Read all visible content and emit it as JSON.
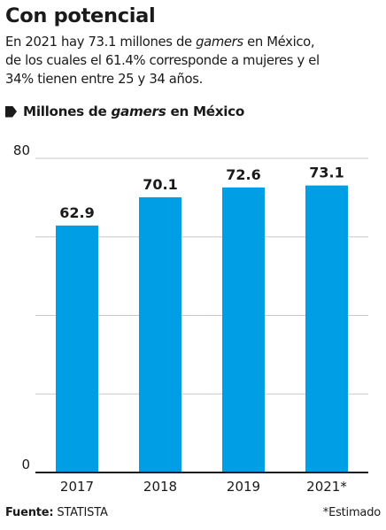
{
  "header": {
    "title": "Con potencial",
    "subtitle": {
      "line1_a": "En 2021 hay 73.1 millones de ",
      "line1_b": "gamers",
      "line1_c": " en México,",
      "line2": "de los cuales el 61.4% corresponde a mujeres y el",
      "line3": "34% tienen entre 25 y 34 años."
    }
  },
  "legend": {
    "label_a": "Millones de ",
    "label_b": "gamers",
    "label_c": " en México",
    "marker_icon": "arrow-tag-icon"
  },
  "chart_data": {
    "type": "bar",
    "categories": [
      "2017",
      "2018",
      "2019",
      "2021*"
    ],
    "values": [
      62.9,
      70.1,
      72.6,
      73.1
    ],
    "value_labels": [
      "62.9",
      "70.1",
      "72.6",
      "73.1"
    ],
    "ylim": [
      0,
      80
    ],
    "y_ticks_labeled": [
      0,
      80
    ],
    "gridlines": [
      20,
      40,
      60,
      80
    ],
    "grid": true,
    "xlabel": "",
    "ylabel": "",
    "colors": {
      "bar": "#009ee4",
      "grid": "#c8c8c8",
      "axis": "#1a1a1a"
    }
  },
  "footer": {
    "source_label": "Fuente:",
    "source_value": "STATISTA",
    "note": "*Estimado"
  }
}
